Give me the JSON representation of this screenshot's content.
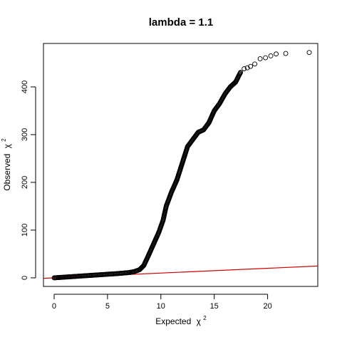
{
  "chart_data": {
    "type": "scatter",
    "title": "lambda = 1.1",
    "xlabel": "Expected",
    "xlabel_symbol": "χ",
    "xlabel_sup": "2",
    "ylabel": "Observed",
    "ylabel_symbol": "χ",
    "ylabel_sup": "2",
    "xlim": [
      -1,
      24.7
    ],
    "ylim": [
      -18,
      491
    ],
    "xticks": [
      0,
      5,
      10,
      15,
      20
    ],
    "yticks": [
      0,
      100,
      200,
      300,
      400
    ],
    "grid": false,
    "legend": "none",
    "marker": "open-circle",
    "marker_color": "#000000",
    "reference_line": {
      "slope": 1,
      "intercept": 0,
      "color": "#cc0000"
    },
    "curve": [
      [
        0,
        0
      ],
      [
        1,
        1.5
      ],
      [
        2,
        3
      ],
      [
        3,
        4.5
      ],
      [
        4,
        6
      ],
      [
        5,
        7.5
      ],
      [
        6,
        9
      ],
      [
        7,
        11
      ],
      [
        7.5,
        13
      ],
      [
        8,
        17
      ],
      [
        8.4,
        26
      ],
      [
        8.8,
        45
      ],
      [
        9.3,
        70
      ],
      [
        9.8,
        95
      ],
      [
        10.2,
        120
      ],
      [
        10.5,
        150
      ],
      [
        11,
        180
      ],
      [
        11.5,
        205
      ],
      [
        12,
        240
      ],
      [
        12.5,
        275
      ],
      [
        13,
        290
      ],
      [
        13.5,
        305
      ],
      [
        14,
        310
      ],
      [
        14.5,
        325
      ],
      [
        15,
        350
      ],
      [
        15.5,
        365
      ],
      [
        16,
        385
      ],
      [
        16.5,
        400
      ],
      [
        17,
        410
      ],
      [
        17.5,
        432
      ]
    ],
    "tail_points": [
      [
        17.8,
        438
      ],
      [
        18.1,
        440
      ],
      [
        18.4,
        443
      ],
      [
        18.8,
        448
      ],
      [
        19.3,
        459
      ],
      [
        19.8,
        461
      ],
      [
        20.3,
        465
      ],
      [
        20.8,
        469
      ],
      [
        21.7,
        470
      ],
      [
        23.9,
        472
      ]
    ]
  }
}
